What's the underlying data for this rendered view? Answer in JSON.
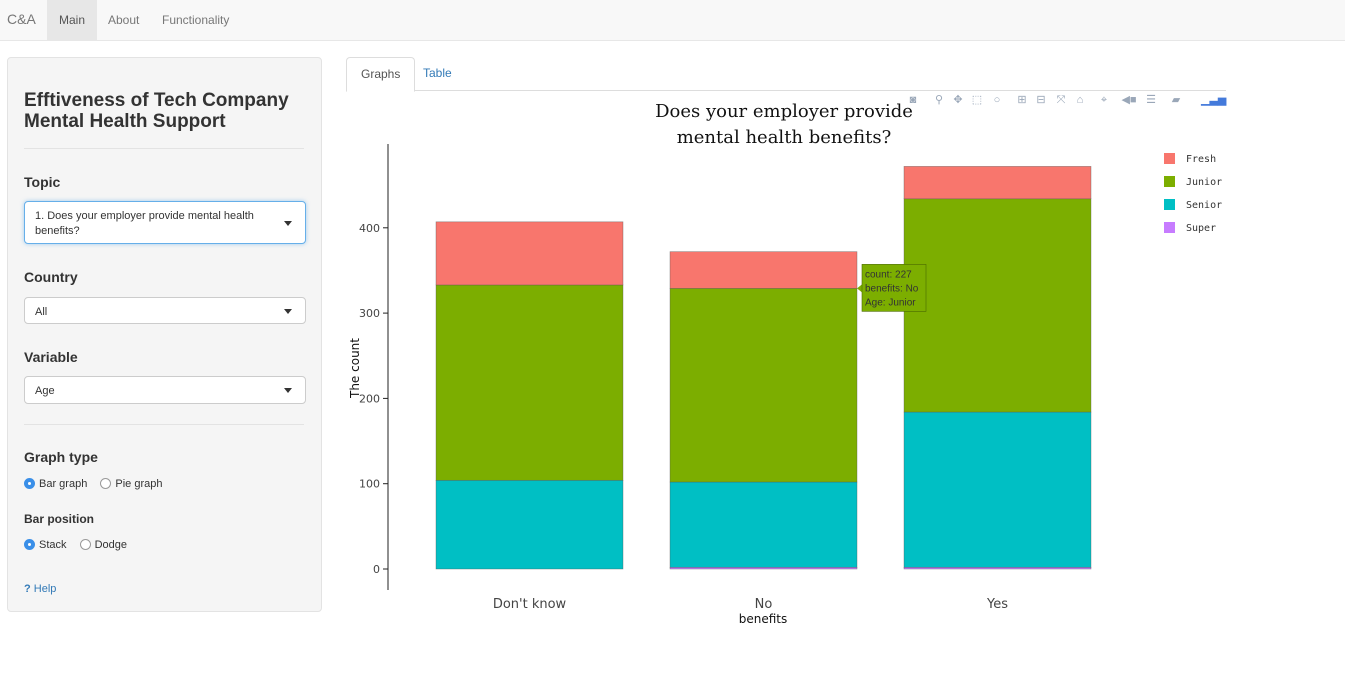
{
  "navbar": {
    "brand": "C&A",
    "items": [
      {
        "label": "Main",
        "active": true
      },
      {
        "label": "About",
        "active": false
      },
      {
        "label": "Functionality",
        "active": false
      }
    ]
  },
  "sidebar": {
    "title": "Efftiveness of Tech Company Mental Health Support",
    "topic": {
      "label": "Topic",
      "value": "1. Does your employer provide mental health benefits?"
    },
    "country": {
      "label": "Country",
      "value": "All"
    },
    "variable": {
      "label": "Variable",
      "value": "Age"
    },
    "graph_type": {
      "label": "Graph type",
      "options": [
        "Bar graph",
        "Pie graph"
      ],
      "selected": "Bar graph"
    },
    "bar_position": {
      "label": "Bar position",
      "options": [
        "Stack",
        "Dodge"
      ],
      "selected": "Stack"
    },
    "help": {
      "icon": "?",
      "label": "Help"
    }
  },
  "tabs": [
    {
      "label": "Graphs",
      "active": true
    },
    {
      "label": "Table",
      "active": false
    }
  ],
  "modebar_icons": [
    "camera-icon",
    "zoom-icon",
    "pan-icon",
    "box-select-icon",
    "lasso-icon",
    "zoom-in-icon",
    "zoom-out-icon",
    "autoscale-icon",
    "reset-axes-icon",
    "spike-lines-icon",
    "hover-closest-icon",
    "hover-compare-icon",
    "edit-chart-icon",
    "plotly-logo-icon"
  ],
  "chart_data": {
    "type": "bar",
    "barmode": "stack",
    "title": "Does your employer provide mental health benefits?",
    "title_lines": [
      "Does your employer provide",
      "mental health benefits?"
    ],
    "xlabel": "benefits",
    "ylabel": "The count",
    "categories": [
      "Don't know",
      "No",
      "Yes"
    ],
    "yticks": [
      0,
      100,
      200,
      300,
      400
    ],
    "ylim": [
      0,
      475
    ],
    "series": [
      {
        "name": "Super",
        "color": "#c77cff",
        "values": [
          0,
          2,
          2
        ]
      },
      {
        "name": "Senior",
        "color": "#00bfc4",
        "values": [
          104,
          100,
          182
        ]
      },
      {
        "name": "Junior",
        "color": "#7cae00",
        "values": [
          229,
          227,
          250
        ]
      },
      {
        "name": "Fresh",
        "color": "#f8766d",
        "values": [
          74,
          43,
          38
        ]
      }
    ],
    "legend_order": [
      "Fresh",
      "Junior",
      "Senior",
      "Super"
    ],
    "legend_position": "top-right",
    "grid": false,
    "hover": {
      "lines": [
        "count: 227",
        "benefits: No",
        "Age: Junior"
      ],
      "category": "No",
      "series": "Junior"
    }
  }
}
